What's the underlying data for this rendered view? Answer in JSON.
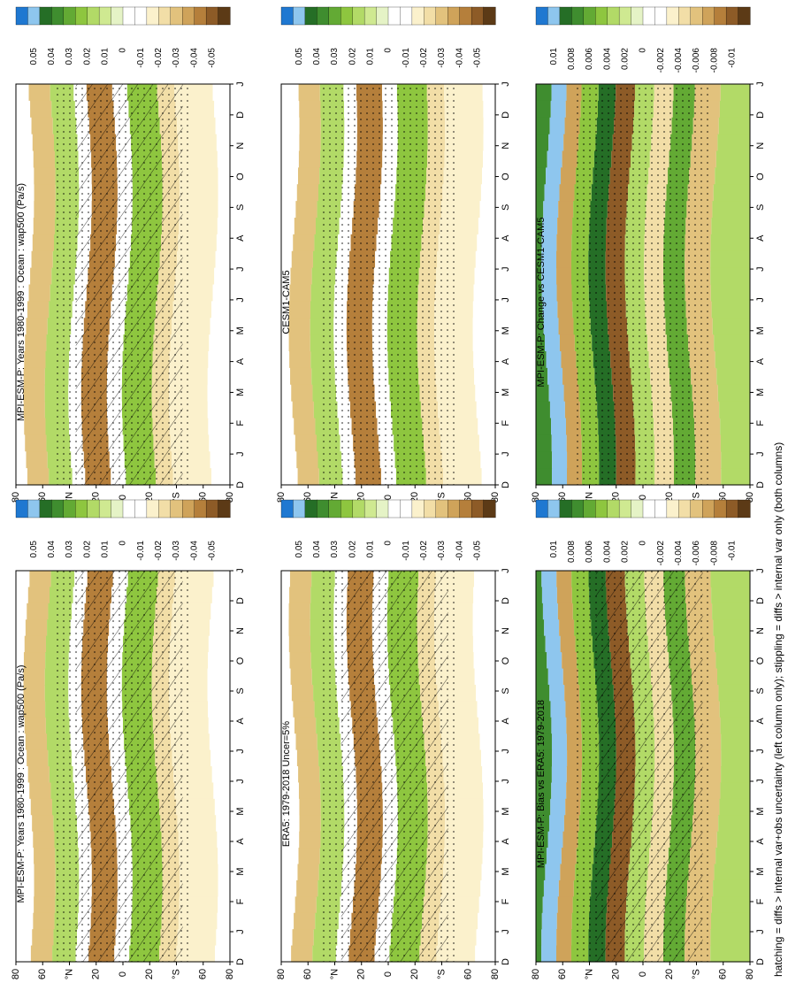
{
  "footnote": "hatching = diffs > internal var+obs uncertainty (left column only); stippling = diffs > internal var only (both columns)",
  "colors": {
    "blue": "#1f78d1",
    "light_blue": "#8ec6ee",
    "greens": [
      "#256e26",
      "#3f8d2f",
      "#63aa34",
      "#8ec63f",
      "#b2da67",
      "#cfe991",
      "#e5f3c6"
    ],
    "white": "#ffffff",
    "browns": [
      "#fbf1cc",
      "#f2dea7",
      "#e2c27d",
      "#cfa35a",
      "#b57f3b",
      "#8d5b27",
      "#5c3a16"
    ]
  },
  "chart_data": [
    {
      "type": "heatmap",
      "id": "model_mean",
      "title": "MPI-ESM-P: Years 1980-1999 : Ocean : wap500 (Pa/s)",
      "x_ticks": [
        "D",
        "J",
        "F",
        "M",
        "A",
        "M",
        "J",
        "J",
        "A",
        "S",
        "O",
        "N",
        "D",
        "J"
      ],
      "y_ticks": [
        "80",
        "60",
        "°N",
        "20",
        "0",
        "20",
        "°S",
        "60",
        "80"
      ],
      "colorbar": [
        "0.05",
        "0.04",
        "0.03",
        "0.02",
        "0.01",
        "0",
        "-0.01",
        "-0.02",
        "-0.03",
        "-0.04",
        "-0.05"
      ],
      "hatching": true,
      "stippling": true
    },
    {
      "type": "heatmap",
      "id": "cesm_mean",
      "title": "CESM1-CAM5",
      "x_ticks": [
        "D",
        "J",
        "F",
        "M",
        "A",
        "M",
        "J",
        "J",
        "A",
        "S",
        "O",
        "N",
        "D",
        "J"
      ],
      "y_ticks": [
        "80",
        "60",
        "°N",
        "20",
        "0",
        "20",
        "°S",
        "60",
        "80"
      ],
      "colorbar": [
        "0.05",
        "0.04",
        "0.03",
        "0.02",
        "0.01",
        "0",
        "-0.01",
        "-0.02",
        "-0.03",
        "-0.04",
        "-0.05"
      ],
      "hatching": false,
      "stippling": true
    },
    {
      "type": "heatmap",
      "id": "change",
      "title": "MPI-ESM-P: Change vs CESM1-CAM5",
      "x_ticks": [
        "D",
        "J",
        "F",
        "M",
        "A",
        "M",
        "J",
        "J",
        "A",
        "S",
        "O",
        "N",
        "D",
        "J"
      ],
      "y_ticks": [
        "80",
        "60",
        "°N",
        "20",
        "0",
        "20",
        "°S",
        "60",
        "80"
      ],
      "colorbar": [
        "0.01",
        "0.008",
        "0.006",
        "0.004",
        "0.002",
        "0",
        "-0.002",
        "-0.004",
        "-0.006",
        "-0.008",
        "-0.01"
      ],
      "hatching": false,
      "stippling": true
    },
    {
      "type": "heatmap",
      "id": "model_mean_left",
      "title": "MPI-ESM-P: Years 1980-1999 : Ocean : wap500 (Pa/s)",
      "x_ticks": [
        "D",
        "J",
        "F",
        "M",
        "A",
        "M",
        "J",
        "J",
        "A",
        "S",
        "O",
        "N",
        "D",
        "J"
      ],
      "y_ticks": [
        "80",
        "60",
        "°N",
        "20",
        "0",
        "20",
        "°S",
        "60",
        "80"
      ],
      "colorbar": [
        "0.05",
        "0.04",
        "0.03",
        "0.02",
        "0.01",
        "0",
        "-0.01",
        "-0.02",
        "-0.03",
        "-0.04",
        "-0.05"
      ],
      "hatching": true,
      "stippling": true
    },
    {
      "type": "heatmap",
      "id": "era5",
      "title": "ERA5: 1979-2018 Uncer=5%",
      "x_ticks": [
        "D",
        "J",
        "F",
        "M",
        "A",
        "M",
        "J",
        "J",
        "A",
        "S",
        "O",
        "N",
        "D",
        "J"
      ],
      "y_ticks": [
        "80",
        "60",
        "°N",
        "20",
        "0",
        "20",
        "°S",
        "60",
        "80"
      ],
      "colorbar": [
        "0.05",
        "0.04",
        "0.03",
        "0.02",
        "0.01",
        "0",
        "-0.01",
        "-0.02",
        "-0.03",
        "-0.04",
        "-0.05"
      ],
      "hatching": true,
      "stippling": true
    },
    {
      "type": "heatmap",
      "id": "bias",
      "title": "MPI-ESM-P: Bias vs ERA5: 1979-2018",
      "x_ticks": [
        "D",
        "J",
        "F",
        "M",
        "A",
        "M",
        "J",
        "J",
        "A",
        "S",
        "O",
        "N",
        "D",
        "J"
      ],
      "y_ticks": [
        "80",
        "60",
        "°N",
        "20",
        "0",
        "20",
        "°S",
        "60",
        "80"
      ],
      "colorbar": [
        "0.01",
        "0.008",
        "0.006",
        "0.004",
        "0.002",
        "0",
        "-0.002",
        "-0.004",
        "-0.006",
        "-0.008",
        "-0.01"
      ],
      "hatching": true,
      "stippling": true
    }
  ]
}
